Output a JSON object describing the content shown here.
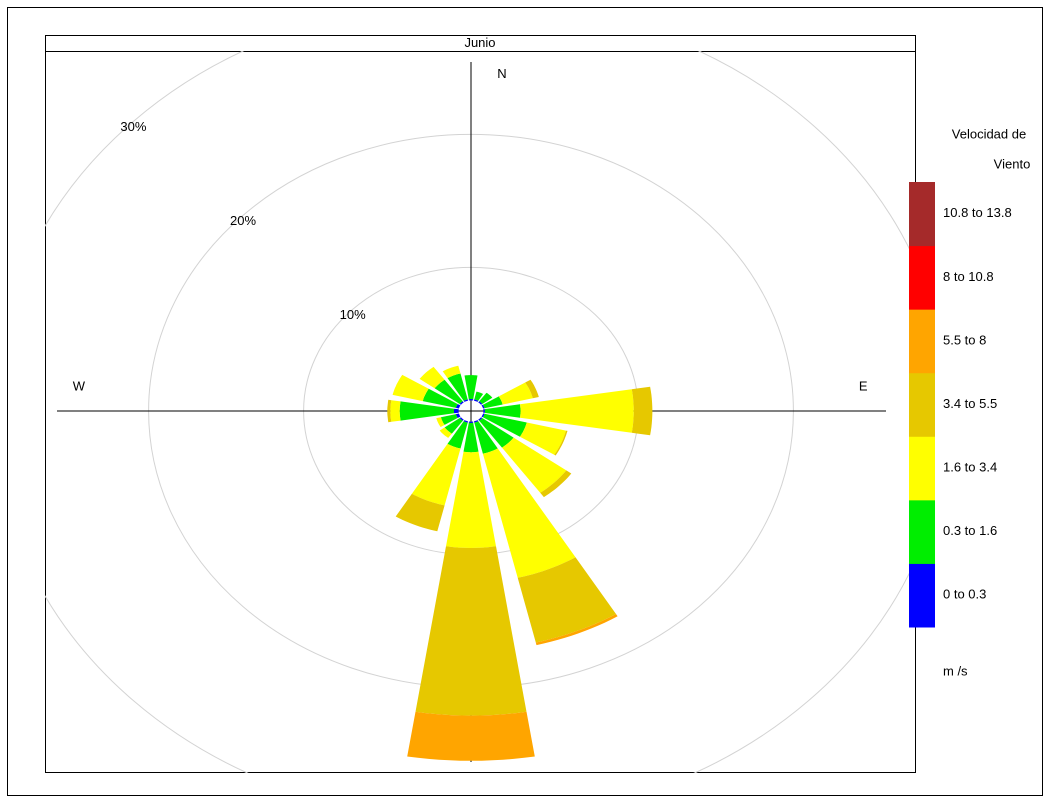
{
  "chart_data": {
    "type": "windrose",
    "title": "Junio",
    "x": [
      0,
      22.5,
      45,
      67.5,
      90,
      112.5,
      135,
      157.5,
      180,
      202.5,
      225,
      247.5,
      270,
      292.5,
      315,
      337.5
    ],
    "series": [
      {
        "name": "0 to 0.3",
        "color": "#0000ff",
        "values": [
          0.1,
          0.1,
          0.1,
          0.1,
          0.1,
          0.1,
          0.1,
          0.1,
          0.1,
          0.1,
          0.1,
          0.2,
          0.3,
          0.2,
          0.1,
          0.1
        ]
      },
      {
        "name": "0.3 to 1.6",
        "color": "#00ee00",
        "values": [
          1.8,
          0.6,
          0.8,
          1.2,
          2.3,
          2.8,
          2.5,
          2.4,
          2.2,
          2.0,
          1.2,
          1.0,
          3.5,
          2.2,
          2.0,
          2.0
        ]
      },
      {
        "name": "1.6 to 3.4",
        "color": "#ffff00",
        "values": [
          0,
          0,
          0,
          2.0,
          7.3,
          2.6,
          4.2,
          9.6,
          7.2,
          4.4,
          0.4,
          0.3,
          0.6,
          2.0,
          1.2,
          0.6
        ]
      },
      {
        "name": "3.4 to 5.5",
        "color": "#e6c800",
        "values": [
          0,
          0,
          0,
          0.4,
          1.2,
          0.1,
          0.4,
          5.0,
          12.6,
          2.0,
          0,
          0,
          0.2,
          0,
          0,
          0
        ]
      },
      {
        "name": "5.5 to 8",
        "color": "#ffa500",
        "values": [
          0,
          0,
          0,
          0,
          0,
          0,
          0,
          0.2,
          3.4,
          0,
          0,
          0,
          0,
          0,
          0,
          0
        ]
      },
      {
        "name": "8 to 10.8",
        "color": "#ff0000",
        "values": [
          0,
          0,
          0,
          0,
          0,
          0,
          0,
          0,
          0,
          0,
          0,
          0,
          0,
          0,
          0,
          0
        ]
      },
      {
        "name": "10.8 to 13.8",
        "color": "#a52a2a",
        "values": [
          0,
          0,
          0,
          0,
          0,
          0,
          0,
          0,
          0,
          0,
          0,
          0,
          0,
          0,
          0,
          0
        ]
      }
    ],
    "rticks": [
      {
        "value": 10,
        "label": "10%"
      },
      {
        "value": 20,
        "label": "20%"
      },
      {
        "value": 30,
        "label": "30%"
      }
    ],
    "compass": [
      {
        "value": 0,
        "label": "N"
      },
      {
        "value": 90,
        "label": "E"
      },
      {
        "value": 270,
        "label": "W"
      }
    ],
    "legend_title": [
      "Velocidad de",
      "Viento"
    ],
    "legend_units": "m /s",
    "grid": true
  }
}
